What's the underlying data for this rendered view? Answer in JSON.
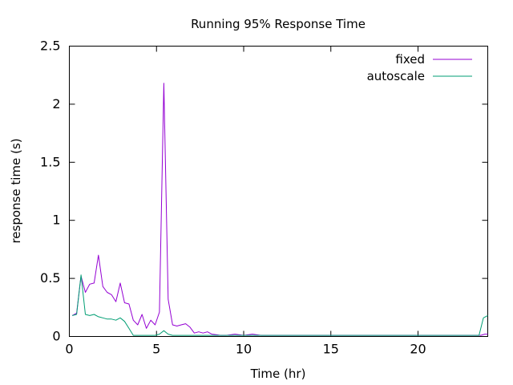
{
  "chart_data": {
    "type": "line",
    "title": "Running 95% Response Time",
    "xlabel": "Time (hr)",
    "ylabel": "response time (s)",
    "xlim": [
      0,
      24
    ],
    "ylim": [
      0,
      2.5
    ],
    "xticks": [
      0,
      5,
      10,
      15,
      20
    ],
    "yticks": [
      0,
      0.5,
      1,
      1.5,
      2,
      2.5
    ],
    "xtick_labels": [
      "0",
      "5",
      "10",
      "15",
      "20"
    ],
    "ytick_labels": [
      "0",
      "0.5",
      "1",
      "1.5",
      "2",
      "2.5"
    ],
    "grid": false,
    "legend_position": "top-right",
    "series": [
      {
        "name": "fixed",
        "color": "#9400d3",
        "x": [
          0.17,
          0.42,
          0.67,
          0.92,
          1.17,
          1.42,
          1.67,
          1.92,
          2.17,
          2.42,
          2.67,
          2.92,
          3.17,
          3.42,
          3.67,
          3.92,
          4.17,
          4.42,
          4.67,
          4.92,
          5.17,
          5.42,
          5.67,
          5.92,
          6.17,
          6.42,
          6.67,
          6.92,
          7.17,
          7.42,
          7.67,
          7.92,
          8.17,
          8.42,
          8.67,
          9.0,
          9.5,
          10.0,
          10.5,
          11.0,
          11.5,
          12.0,
          13.0,
          14.0,
          15.0,
          16.0,
          17.0,
          18.0,
          19.0,
          20.0,
          21.0,
          22.0,
          23.0,
          23.6,
          23.83,
          24.0
        ],
        "y": [
          0.18,
          0.2,
          0.52,
          0.38,
          0.45,
          0.46,
          0.7,
          0.43,
          0.38,
          0.36,
          0.3,
          0.46,
          0.29,
          0.28,
          0.14,
          0.1,
          0.19,
          0.07,
          0.14,
          0.1,
          0.21,
          2.18,
          0.32,
          0.1,
          0.09,
          0.1,
          0.11,
          0.08,
          0.03,
          0.04,
          0.03,
          0.04,
          0.02,
          0.015,
          0.01,
          0.01,
          0.02,
          0.01,
          0.02,
          0.01,
          0.01,
          0.01,
          0.01,
          0.01,
          0.01,
          0.01,
          0.01,
          0.01,
          0.01,
          0.01,
          0.01,
          0.01,
          0.01,
          0.01,
          0.02,
          0.02
        ]
      },
      {
        "name": "autoscale",
        "color": "#009e73",
        "x": [
          0.17,
          0.42,
          0.67,
          0.92,
          1.17,
          1.42,
          1.67,
          1.92,
          2.17,
          2.42,
          2.67,
          2.92,
          3.17,
          3.42,
          3.67,
          3.92,
          4.17,
          4.42,
          4.67,
          4.92,
          5.17,
          5.42,
          5.67,
          5.92,
          6.17,
          6.42,
          6.67,
          6.92,
          7.17,
          7.5,
          8.0,
          9.0,
          10.0,
          11.0,
          12.0,
          13.0,
          14.0,
          15.0,
          16.0,
          17.0,
          18.0,
          19.0,
          20.0,
          21.0,
          22.0,
          23.0,
          23.5,
          23.75,
          24.0
        ],
        "y": [
          0.18,
          0.19,
          0.53,
          0.19,
          0.18,
          0.19,
          0.17,
          0.16,
          0.15,
          0.15,
          0.14,
          0.16,
          0.13,
          0.07,
          0.01,
          0.01,
          0.01,
          0.01,
          0.01,
          0.01,
          0.02,
          0.05,
          0.02,
          0.01,
          0.01,
          0.01,
          0.01,
          0.01,
          0.01,
          0.01,
          0.01,
          0.01,
          0.01,
          0.01,
          0.01,
          0.01,
          0.01,
          0.01,
          0.01,
          0.01,
          0.01,
          0.01,
          0.01,
          0.01,
          0.01,
          0.01,
          0.01,
          0.16,
          0.18
        ]
      }
    ]
  }
}
